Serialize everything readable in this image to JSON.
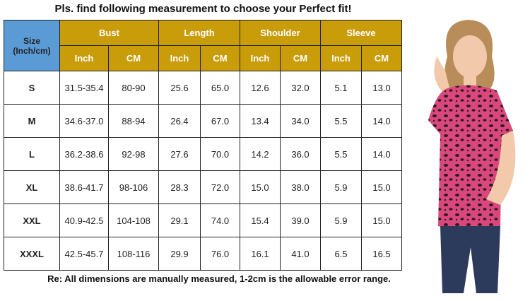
{
  "title": "Pls. find following measurement to choose your Perfect fit!",
  "table": {
    "size_header": [
      "Size",
      "(Inch/cm)"
    ],
    "groups": [
      {
        "name": "Bust",
        "units": [
          "Inch",
          "CM"
        ]
      },
      {
        "name": "Length",
        "units": [
          "Inch",
          "CM"
        ]
      },
      {
        "name": "Shoulder",
        "units": [
          "Inch",
          "CM"
        ]
      },
      {
        "name": "Sleeve",
        "units": [
          "Inch",
          "CM"
        ]
      }
    ],
    "rows": [
      [
        "S",
        "31.5-35.4",
        "80-90",
        "25.6",
        "65.0",
        "12.6",
        "32.0",
        "5.1",
        "13.0"
      ],
      [
        "M",
        "34.6-37.0",
        "88-94",
        "26.4",
        "67.0",
        "13.4",
        "34.0",
        "5.5",
        "14.0"
      ],
      [
        "L",
        "36.2-38.6",
        "92-98",
        "27.6",
        "70.0",
        "14.2",
        "36.0",
        "5.5",
        "14.0"
      ],
      [
        "XL",
        "38.6-41.7",
        "98-106",
        "28.3",
        "72.0",
        "15.0",
        "38.0",
        "5.9",
        "15.0"
      ],
      [
        "XXL",
        "40.9-42.5",
        "104-108",
        "29.1",
        "74.0",
        "15.4",
        "39.0",
        "5.9",
        "15.0"
      ],
      [
        "XXXL",
        "42.5-45.7",
        "108-116",
        "29.9",
        "76.0",
        "16.1",
        "41.0",
        "6.5",
        "16.5"
      ]
    ]
  },
  "note": "Re: All dimensions are manually measured, 1-2cm is the allowable error range."
}
